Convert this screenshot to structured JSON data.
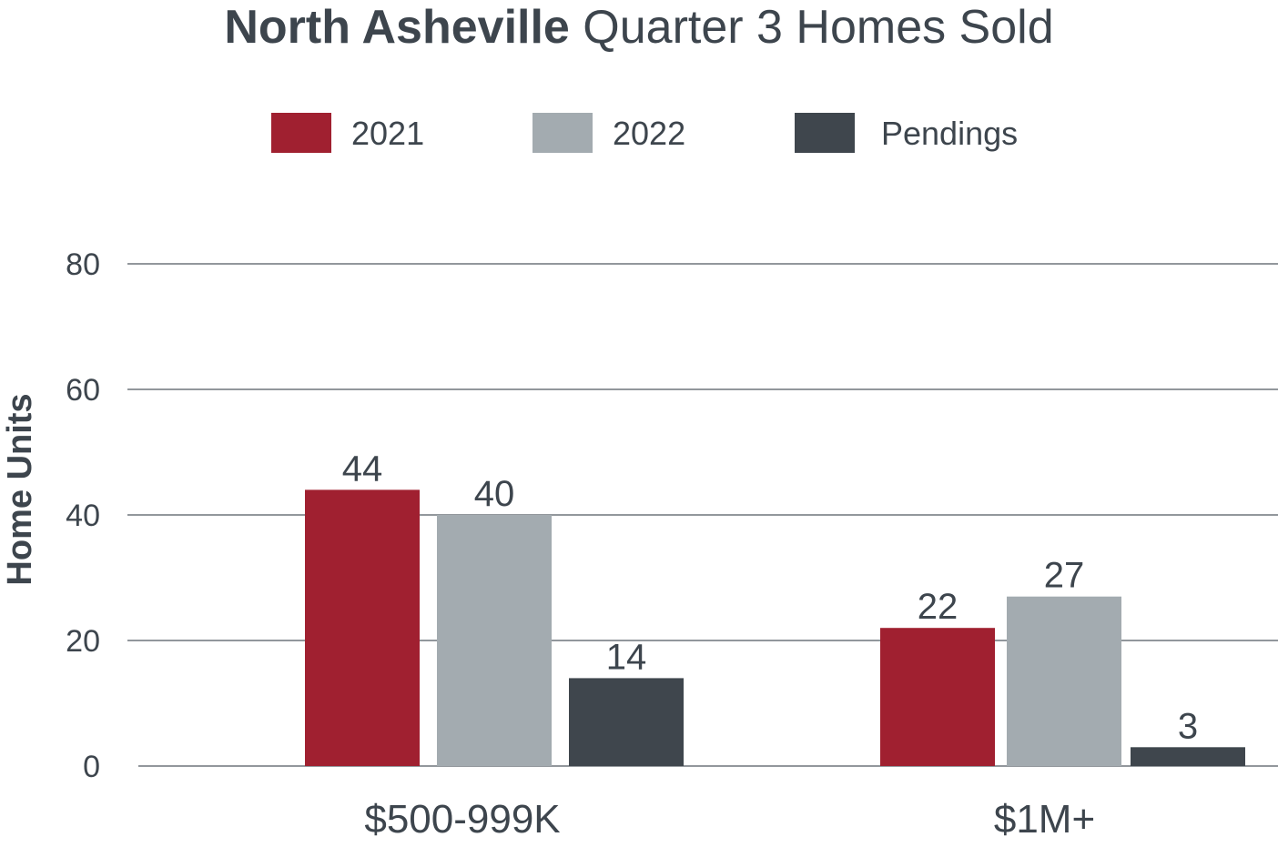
{
  "chart_data": {
    "type": "bar",
    "title": {
      "bold": "North Asheville",
      "rest": "Quarter 3 Homes Sold"
    },
    "xlabel": "",
    "ylabel": "Home Units",
    "categories": [
      "$500-999K",
      "$1M+"
    ],
    "series": [
      {
        "name": "2021",
        "color": "#a02030",
        "values": [
          44,
          22
        ]
      },
      {
        "name": "2022",
        "color": "#a3abb0",
        "values": [
          40,
          27
        ]
      },
      {
        "name": "Pendings",
        "color": "#3f464d",
        "values": [
          14,
          3
        ]
      }
    ],
    "ylim": [
      0,
      80
    ],
    "yticks": [
      "0",
      "20",
      "40",
      "60",
      "80"
    ],
    "grid": true,
    "legend_position": "top-center"
  }
}
